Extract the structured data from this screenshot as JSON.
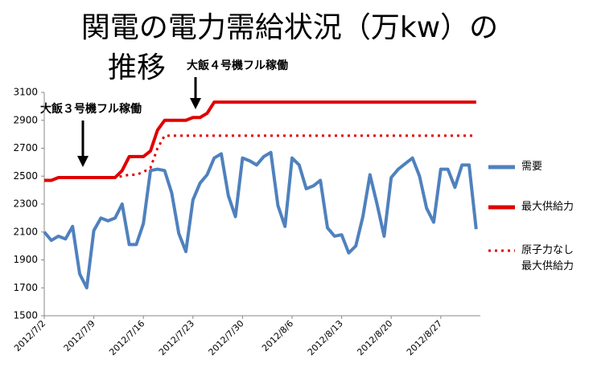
{
  "chart_data": {
    "type": "line",
    "title": [
      "関電の電力需給状況（万kw）の",
      "推移"
    ],
    "annotations": [
      "大飯３号機フル稼働",
      "大飯４号機フル稼働"
    ],
    "x": [
      "2012/7/2",
      "2012/7/3",
      "2012/7/4",
      "2012/7/5",
      "2012/7/6",
      "2012/7/7",
      "2012/7/8",
      "2012/7/9",
      "2012/7/10",
      "2012/7/11",
      "2012/7/12",
      "2012/7/13",
      "2012/7/14",
      "2012/7/15",
      "2012/7/16",
      "2012/7/17",
      "2012/7/18",
      "2012/7/19",
      "2012/7/20",
      "2012/7/21",
      "2012/7/22",
      "2012/7/23",
      "2012/7/24",
      "2012/7/25",
      "2012/7/26",
      "2012/7/27",
      "2012/7/28",
      "2012/7/29",
      "2012/7/30",
      "2012/7/31",
      "2012/8/1",
      "2012/8/2",
      "2012/8/3",
      "2012/8/4",
      "2012/8/5",
      "2012/8/6",
      "2012/8/7",
      "2012/8/8",
      "2012/8/9",
      "2012/8/10",
      "2012/8/11",
      "2012/8/12",
      "2012/8/13",
      "2012/8/14",
      "2012/8/15",
      "2012/8/16",
      "2012/8/17",
      "2012/8/18",
      "2012/8/19",
      "2012/8/20",
      "2012/8/21",
      "2012/8/22",
      "2012/8/23",
      "2012/8/24",
      "2012/8/25",
      "2012/8/26",
      "2012/8/27",
      "2012/8/28",
      "2012/8/29",
      "2012/8/30",
      "2012/8/31",
      "2012/9/1"
    ],
    "xticks": [
      "2012/7/2",
      "2012/7/9",
      "2012/7/16",
      "2012/7/23",
      "2012/7/30",
      "2012/8/6",
      "2012/8/13",
      "2012/8/20",
      "2012/8/27"
    ],
    "ylim": [
      1500,
      3100
    ],
    "yticks": [
      1500,
      1700,
      1900,
      2100,
      2300,
      2500,
      2700,
      2900,
      3100
    ],
    "grid": false,
    "legend": "right",
    "series": [
      {
        "name": "需要",
        "color": "#4f81bd",
        "style": "solid",
        "values": [
          2100,
          2040,
          2070,
          2050,
          2140,
          1800,
          1700,
          2110,
          2200,
          2180,
          2200,
          2300,
          2010,
          2010,
          2160,
          2540,
          2550,
          2540,
          2380,
          2090,
          1960,
          2330,
          2450,
          2510,
          2630,
          2660,
          2360,
          2210,
          2630,
          2610,
          2580,
          2640,
          2670,
          2290,
          2140,
          2630,
          2580,
          2410,
          2430,
          2470,
          2130,
          2070,
          2080,
          1950,
          2000,
          2210,
          2510,
          2300,
          2070,
          2490,
          2550,
          2590,
          2630,
          2500,
          2270,
          2170,
          2550,
          2550,
          2420,
          2580,
          2580,
          2120
        ]
      },
      {
        "name": "最大供給力",
        "color": "#e00000",
        "style": "solid",
        "values": [
          2470,
          2470,
          2490,
          2490,
          2490,
          2490,
          2490,
          2490,
          2490,
          2490,
          2490,
          2540,
          2640,
          2640,
          2640,
          2680,
          2830,
          2900,
          2900,
          2900,
          2900,
          2920,
          2920,
          2950,
          3030,
          3030,
          3030,
          3030,
          3030,
          3030,
          3030,
          3030,
          3030,
          3030,
          3030,
          3030,
          3030,
          3030,
          3030,
          3030,
          3030,
          3030,
          3030,
          3030,
          3030,
          3030,
          3030,
          3030,
          3030,
          3030,
          3030,
          3030,
          3030,
          3030,
          3030,
          3030,
          3030,
          3030,
          3030,
          3030,
          3030,
          3030
        ]
      },
      {
        "name": "原子力なし\n最大供給力",
        "color": "#e00000",
        "style": "dotted",
        "values": [
          null,
          null,
          null,
          null,
          null,
          null,
          null,
          2490,
          2490,
          2490,
          2490,
          2500,
          2510,
          2510,
          2530,
          2560,
          2700,
          2790,
          2790,
          2790,
          2790,
          2790,
          2790,
          2790,
          2790,
          2790,
          2790,
          2790,
          2790,
          2790,
          2790,
          2790,
          2790,
          2790,
          2790,
          2790,
          2790,
          2790,
          2790,
          2790,
          2790,
          2790,
          2790,
          2790,
          2790,
          2790,
          2790,
          2790,
          2790,
          2790,
          2790,
          2790,
          2790,
          2790,
          2790,
          2790,
          2790,
          2790,
          2790,
          2790,
          2790,
          2790
        ]
      }
    ]
  }
}
